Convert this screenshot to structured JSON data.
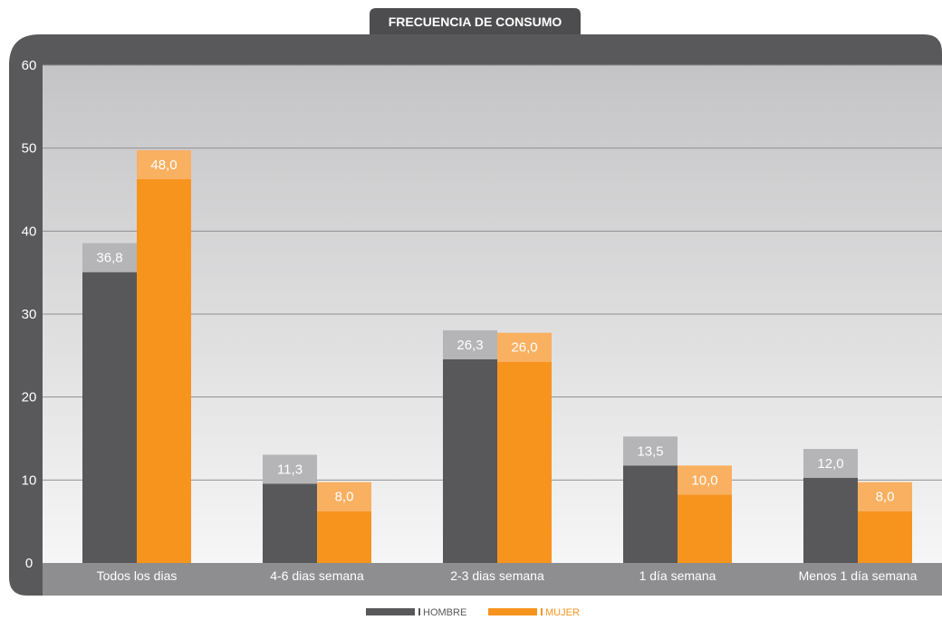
{
  "chart_data": {
    "type": "bar",
    "title": "FRECUENCIA DE CONSUMO",
    "categories": [
      "Todos los dias",
      "4-6 dias semana",
      "2-3 dias semana",
      "1 día semana",
      "Menos 1 día semana"
    ],
    "series": [
      {
        "name": "HOMBRE",
        "values": [
          36.8,
          11.3,
          26.3,
          13.5,
          12.0
        ],
        "labels": [
          "36,8",
          "11,3",
          "26,3",
          "13,5",
          "12,0"
        ],
        "color": "#58585a",
        "cap_color": "#b5b5b7"
      },
      {
        "name": "MUJER",
        "values": [
          48.0,
          8.0,
          26.0,
          10.0,
          8.0
        ],
        "labels": [
          "48,0",
          "8,0",
          "26,0",
          "10,0",
          "8,0"
        ],
        "color": "#f7941d",
        "cap_color": "#fab061"
      }
    ],
    "ylim": [
      0,
      60
    ],
    "yticks": [
      "0",
      "10",
      "20",
      "30",
      "40",
      "50",
      "60"
    ],
    "grid": true,
    "legend_position": "bottom-center"
  }
}
